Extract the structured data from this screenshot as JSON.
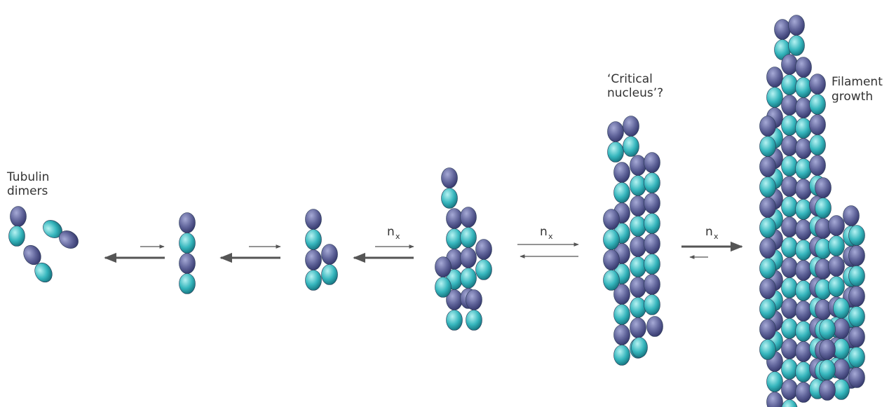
{
  "labels": [
    {
      "lines": [
        "Tubulin",
        "dimers"
      ]
    },
    {
      "lines": [
        "‘Critical",
        "nucleus’?"
      ]
    },
    {
      "lines": [
        "Filament",
        "growth"
      ]
    }
  ],
  "arrows": [
    {
      "label": "n",
      "subscript": "x"
    },
    {
      "label": "n",
      "subscript": "x"
    },
    {
      "label": "n",
      "subscript": "x"
    }
  ]
}
